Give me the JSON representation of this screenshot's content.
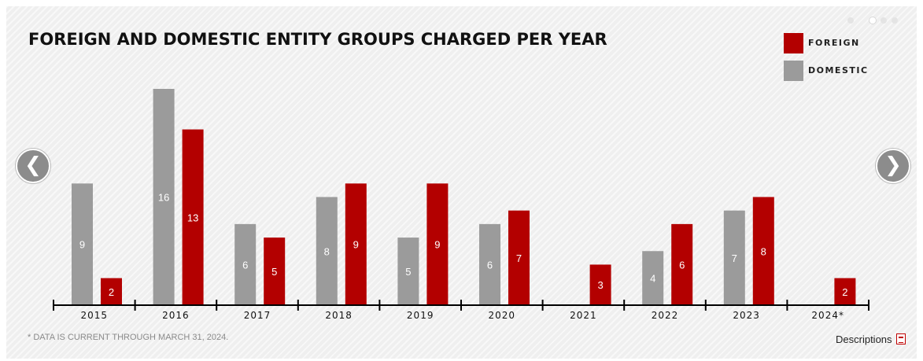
{
  "title": "FOREIGN AND DOMESTIC ENTITY GROUPS CHARGED PER YEAR",
  "legend": [
    {
      "label": "FOREIGN",
      "color": "#b30000"
    },
    {
      "label": "DOMESTIC",
      "color": "#9b9b9b"
    }
  ],
  "nav": {
    "prev_icon": "❮",
    "next_icon": "❯"
  },
  "carousel_dots": 4,
  "footnote": "* DATA IS CURRENT THROUGH MARCH 31, 2024.",
  "descriptions_link": "Descriptions",
  "chart_data": {
    "type": "bar",
    "title": "FOREIGN AND DOMESTIC ENTITY GROUPS CHARGED PER YEAR",
    "categories": [
      "2015",
      "2016",
      "2017",
      "2018",
      "2019",
      "2020",
      "2021",
      "2022",
      "2023",
      "2024*"
    ],
    "series": [
      {
        "name": "DOMESTIC",
        "color": "#9b9b9b",
        "values": [
          9,
          16,
          6,
          8,
          5,
          6,
          null,
          4,
          7,
          null
        ]
      },
      {
        "name": "FOREIGN",
        "color": "#b30000",
        "values": [
          2,
          13,
          5,
          9,
          9,
          7,
          3,
          6,
          8,
          2
        ]
      }
    ],
    "ylim": [
      0,
      16
    ],
    "grid": false,
    "legend_position": "top-right",
    "data_labels": true
  }
}
